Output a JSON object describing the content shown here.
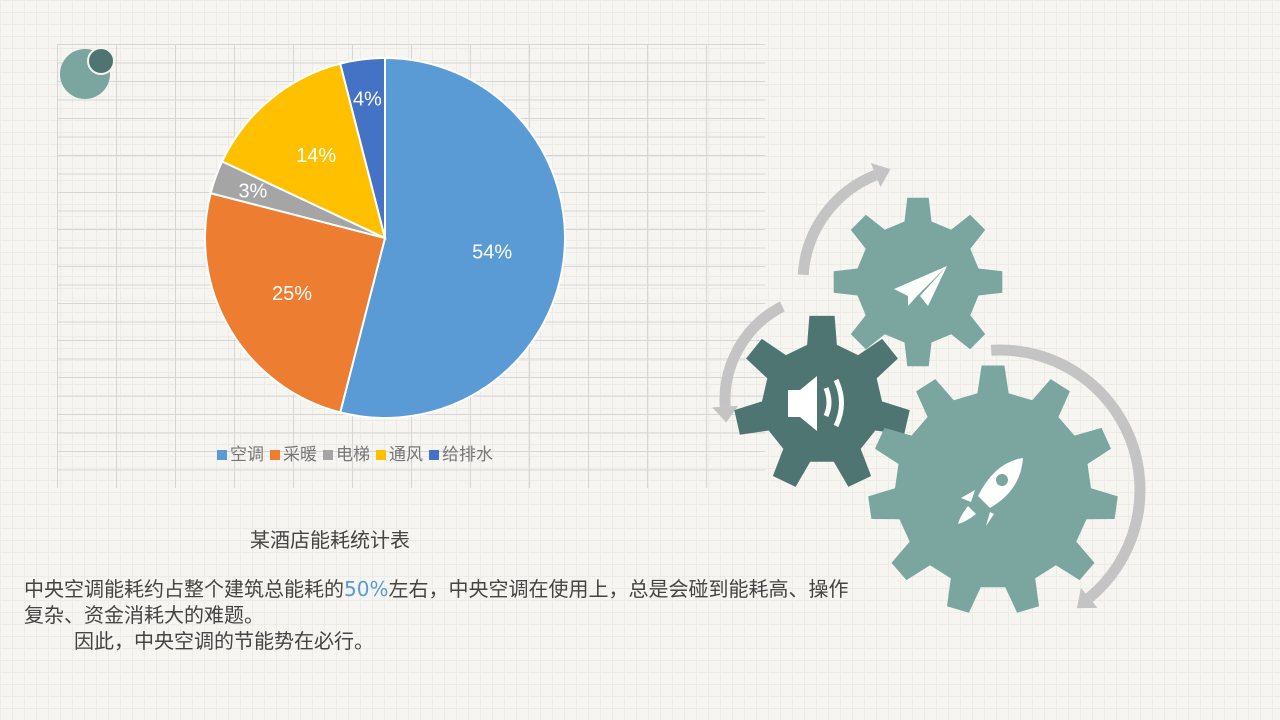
{
  "chart_data": {
    "type": "pie",
    "categories": [
      "空调",
      "采暖",
      "电梯",
      "通风",
      "给排水"
    ],
    "values": [
      54,
      25,
      3,
      14,
      4
    ],
    "labels": [
      "54%",
      "25%",
      "3%",
      "14%",
      "4%"
    ],
    "colors": [
      "#5b9bd5",
      "#ed7d31",
      "#a5a5a5",
      "#ffc000",
      "#4472c4"
    ],
    "start": "12 o'clock, clockwise",
    "legend": "bottom"
  },
  "caption": "某酒店能耗统计表",
  "paragraph": {
    "part1": "中央空调能耗约占整个建筑总能耗的",
    "highlight": "50%",
    "part2": "左右，中央空调在使用上，总是会碰到能耗高、操作复杂、资金消耗大的难题。",
    "line2": "因此，中央空调的节能势在必行。"
  },
  "gears": [
    {
      "icon": "paper-plane-icon",
      "color": "#7ba59f"
    },
    {
      "icon": "speaker-icon",
      "color": "#4e7571"
    },
    {
      "icon": "rocket-icon",
      "color": "#7ba59f"
    }
  ]
}
